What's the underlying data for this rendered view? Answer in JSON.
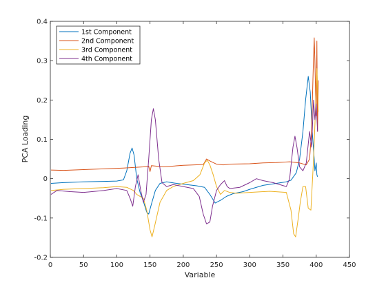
{
  "chart_data": {
    "type": "line",
    "title": "",
    "xlabel": "Variable",
    "ylabel": "PCA Loading",
    "xlim": [
      0,
      450
    ],
    "ylim": [
      -0.2,
      0.4
    ],
    "xticks": [
      0,
      50,
      100,
      150,
      200,
      250,
      300,
      350,
      400,
      450
    ],
    "yticks": [
      -0.2,
      -0.1,
      0,
      0.1,
      0.2,
      0.3,
      0.4
    ],
    "xtick_labels": [
      "0",
      "50",
      "100",
      "150",
      "200",
      "250",
      "300",
      "350",
      "400",
      "450"
    ],
    "ytick_labels": [
      "-0.2",
      "-0.1",
      "0",
      "0.1",
      "0.2",
      "0.3",
      "0.4"
    ],
    "grid": false,
    "legend_position": "top-left",
    "series": [
      {
        "name": "1st Component",
        "color": "#0072BD",
        "points": [
          [
            1,
            -0.012
          ],
          [
            20,
            -0.01
          ],
          [
            50,
            -0.008
          ],
          [
            80,
            -0.007
          ],
          [
            100,
            -0.006
          ],
          [
            110,
            -0.003
          ],
          [
            115,
            0.02
          ],
          [
            120,
            0.065
          ],
          [
            123,
            0.078
          ],
          [
            126,
            0.06
          ],
          [
            130,
            0.0
          ],
          [
            135,
            -0.035
          ],
          [
            140,
            -0.058
          ],
          [
            145,
            -0.085
          ],
          [
            148,
            -0.09
          ],
          [
            152,
            -0.065
          ],
          [
            158,
            -0.03
          ],
          [
            165,
            -0.012
          ],
          [
            175,
            -0.008
          ],
          [
            190,
            -0.012
          ],
          [
            205,
            -0.015
          ],
          [
            220,
            -0.018
          ],
          [
            232,
            -0.022
          ],
          [
            240,
            -0.04
          ],
          [
            248,
            -0.062
          ],
          [
            256,
            -0.055
          ],
          [
            265,
            -0.045
          ],
          [
            275,
            -0.038
          ],
          [
            290,
            -0.033
          ],
          [
            300,
            -0.027
          ],
          [
            320,
            -0.017
          ],
          [
            340,
            -0.012
          ],
          [
            355,
            -0.008
          ],
          [
            362,
            -0.004
          ],
          [
            370,
            0.015
          ],
          [
            375,
            0.05
          ],
          [
            380,
            0.12
          ],
          [
            384,
            0.2
          ],
          [
            388,
            0.26
          ],
          [
            391,
            0.22
          ],
          [
            394,
            0.12
          ],
          [
            397,
            0.05
          ],
          [
            398,
            0.02
          ],
          [
            400,
            0.04
          ],
          [
            401,
            0.01
          ],
          [
            402,
            0.005
          ]
        ]
      },
      {
        "name": "2nd Component",
        "color": "#D95319",
        "points": [
          [
            1,
            0.022
          ],
          [
            20,
            0.021
          ],
          [
            50,
            0.023
          ],
          [
            80,
            0.025
          ],
          [
            110,
            0.027
          ],
          [
            140,
            0.03
          ],
          [
            148,
            0.032
          ],
          [
            150,
            0.018
          ],
          [
            152,
            0.033
          ],
          [
            170,
            0.03
          ],
          [
            200,
            0.034
          ],
          [
            230,
            0.036
          ],
          [
            235,
            0.05
          ],
          [
            240,
            0.045
          ],
          [
            250,
            0.037
          ],
          [
            260,
            0.035
          ],
          [
            270,
            0.037
          ],
          [
            300,
            0.038
          ],
          [
            320,
            0.04
          ],
          [
            340,
            0.041
          ],
          [
            360,
            0.043
          ],
          [
            375,
            0.04
          ],
          [
            385,
            0.035
          ],
          [
            390,
            0.05
          ],
          [
            393,
            0.12
          ],
          [
            395,
            0.25
          ],
          [
            396,
            0.31
          ],
          [
            397,
            0.358
          ],
          [
            398,
            0.3
          ],
          [
            399,
            0.22
          ],
          [
            400,
            0.16
          ],
          [
            401,
            0.35
          ],
          [
            402,
            0.12
          ],
          [
            403,
            0.25
          ]
        ]
      },
      {
        "name": "3rd Component",
        "color": "#EDB120",
        "points": [
          [
            1,
            -0.03
          ],
          [
            20,
            -0.027
          ],
          [
            50,
            -0.025
          ],
          [
            80,
            -0.023
          ],
          [
            100,
            -0.02
          ],
          [
            115,
            -0.022
          ],
          [
            125,
            -0.03
          ],
          [
            130,
            -0.04
          ],
          [
            135,
            -0.045
          ],
          [
            140,
            -0.05
          ],
          [
            145,
            -0.08
          ],
          [
            150,
            -0.13
          ],
          [
            153,
            -0.148
          ],
          [
            157,
            -0.12
          ],
          [
            165,
            -0.06
          ],
          [
            175,
            -0.03
          ],
          [
            185,
            -0.02
          ],
          [
            200,
            -0.012
          ],
          [
            215,
            -0.005
          ],
          [
            225,
            0.01
          ],
          [
            232,
            0.04
          ],
          [
            236,
            0.047
          ],
          [
            240,
            0.035
          ],
          [
            245,
            0.01
          ],
          [
            250,
            -0.02
          ],
          [
            256,
            -0.04
          ],
          [
            262,
            -0.03
          ],
          [
            270,
            -0.035
          ],
          [
            280,
            -0.037
          ],
          [
            300,
            -0.035
          ],
          [
            330,
            -0.032
          ],
          [
            355,
            -0.035
          ],
          [
            362,
            -0.08
          ],
          [
            366,
            -0.14
          ],
          [
            369,
            -0.148
          ],
          [
            373,
            -0.1
          ],
          [
            376,
            -0.06
          ],
          [
            380,
            -0.02
          ],
          [
            384,
            -0.02
          ],
          [
            388,
            -0.075
          ],
          [
            392,
            -0.08
          ],
          [
            396,
            0.05
          ],
          [
            399,
            0.18
          ],
          [
            401,
            0.28
          ],
          [
            403,
            0.17
          ]
        ]
      },
      {
        "name": "4th Component",
        "color": "#7E2F8E",
        "points": [
          [
            1,
            -0.04
          ],
          [
            10,
            -0.03
          ],
          [
            30,
            -0.033
          ],
          [
            50,
            -0.035
          ],
          [
            80,
            -0.03
          ],
          [
            100,
            -0.025
          ],
          [
            115,
            -0.03
          ],
          [
            120,
            -0.05
          ],
          [
            124,
            -0.07
          ],
          [
            128,
            -0.02
          ],
          [
            132,
            0.01
          ],
          [
            136,
            -0.03
          ],
          [
            140,
            -0.06
          ],
          [
            144,
            -0.04
          ],
          [
            148,
            0.05
          ],
          [
            152,
            0.15
          ],
          [
            155,
            0.178
          ],
          [
            158,
            0.15
          ],
          [
            163,
            0.05
          ],
          [
            168,
            -0.01
          ],
          [
            175,
            -0.02
          ],
          [
            185,
            -0.015
          ],
          [
            200,
            -0.02
          ],
          [
            215,
            -0.025
          ],
          [
            224,
            -0.045
          ],
          [
            230,
            -0.09
          ],
          [
            235,
            -0.115
          ],
          [
            240,
            -0.11
          ],
          [
            244,
            -0.07
          ],
          [
            250,
            -0.03
          ],
          [
            256,
            -0.015
          ],
          [
            262,
            -0.005
          ],
          [
            266,
            -0.02
          ],
          [
            270,
            -0.025
          ],
          [
            285,
            -0.022
          ],
          [
            300,
            -0.01
          ],
          [
            310,
            0.0
          ],
          [
            320,
            -0.005
          ],
          [
            335,
            -0.01
          ],
          [
            345,
            -0.015
          ],
          [
            355,
            -0.02
          ],
          [
            360,
            0.0
          ],
          [
            365,
            0.08
          ],
          [
            368,
            0.108
          ],
          [
            371,
            0.08
          ],
          [
            375,
            0.03
          ],
          [
            380,
            0.02
          ],
          [
            385,
            0.04
          ],
          [
            390,
            0.12
          ],
          [
            393,
            0.08
          ],
          [
            396,
            0.2
          ],
          [
            398,
            0.15
          ],
          [
            400,
            0.19
          ],
          [
            402,
            0.12
          ]
        ]
      }
    ]
  }
}
